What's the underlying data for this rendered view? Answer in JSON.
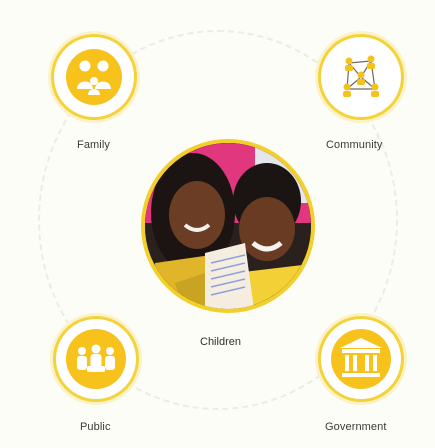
{
  "nodes": {
    "family": {
      "label": "Family",
      "icon": "family-icon"
    },
    "community": {
      "label": "Community",
      "icon": "community-network-icon"
    },
    "public": {
      "label": "Public",
      "icon": "crowd-icon"
    },
    "government": {
      "label": "Government",
      "icon": "government-building-icon"
    }
  },
  "center": {
    "label": "Children",
    "image": "children-photo"
  },
  "colors": {
    "accent": "#f3cf2c",
    "accent_dark": "#e2b400",
    "icon_fill": "#f6c21a",
    "background": "#fdfdf8"
  }
}
